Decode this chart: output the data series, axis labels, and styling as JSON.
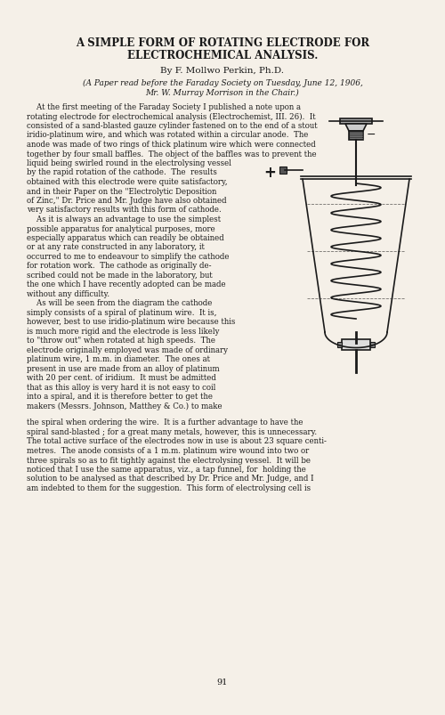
{
  "title_line1": "A SIMPLE FORM OF ROTATING ELECTRODE FOR",
  "title_line2": "ELECTROCHEMICAL ANALYSIS.",
  "author": "By F. Mollwo Perkin, Ph.D.",
  "subtitle": "(A Paper read before the Faraday Society on Tuesday, June 12, 1906,",
  "subtitle2": "Mr. W. Murray Morrison in the Chair.)",
  "page_number": "91",
  "bg_color": "#f5f0e8",
  "text_color": "#1a1a1a",
  "body_text": [
    "    At the first meeting of the Faraday Society I published a note upon a",
    "rotating electrode for electrochemical analysis (Electrochemist, III. 26).  It",
    "consisted of a sand-blasted gauze cylinder fastened on to the end of a stout",
    "iridio-platinum wire, and which was rotated within a circular anode.  The",
    "anode was made of two rings of thick platinum wire which were connected",
    "together by four small baffles.  The object of the baffles was to prevent the",
    "liquid being swirled round in the electrolysing vessel",
    "by the rapid rotation of the cathode.  The  results",
    "obtained with this electrode were quite satisfactory,",
    "and in their Paper on the \"Electrolytic Deposition",
    "of Zinc,\" Dr. Price and Mr. Judge have also obtained",
    "very satisfactory results with this form of cathode.",
    "    As it is always an advantage to use the simplest",
    "possible apparatus for analytical purposes, more",
    "especially apparatus which can readily be obtained",
    "or at any rate constructed in any laboratory, it",
    "occurred to me to endeavour to simplify the cathode",
    "for rotation work.  The cathode as originally de-",
    "scribed could not be made in the laboratory, but",
    "the one which I have recently adopted can be made",
    "without any difficulty.",
    "    As will be seen from the diagram the cathode",
    "simply consists of a spiral of platinum wire.  It is,",
    "however, best to use iridio-platinum wire because this",
    "is much more rigid and the electrode is less likely",
    "to \"throw out\" when rotated at high speeds.  The",
    "electrode originally employed was made of ordinary",
    "platinum wire, 1 m.m. in diameter.  The ones at",
    "present in use are made from an alloy of platinum",
    "with 20 per cent. of iridium.  It must be admitted",
    "that as this alloy is very hard it is not easy to coil",
    "into a spiral, and it is therefore better to get the",
    "makers (Messrs. Johnson, Matthey & Co.) to make"
  ],
  "body_text2": [
    "the spiral when ordering the wire.  It is a further advantage to have the",
    "spiral sand-blasted ; for a great many metals, however, this is unnecessary.",
    "The total active surface of the electrodes now in use is about 23 square centi-",
    "metres.  The anode consists of a 1 m.m. platinum wire wound into two or",
    "three spirals so as to fit tightly against the electrolysing vessel.  It will be",
    "noticed that I use the same apparatus, viz., a tap funnel, for  holding the",
    "solution to be analysed as that described by Dr. Price and Mr. Judge, and I",
    "am indebted to them for the suggestion.  This form of electrolysing cell is"
  ]
}
